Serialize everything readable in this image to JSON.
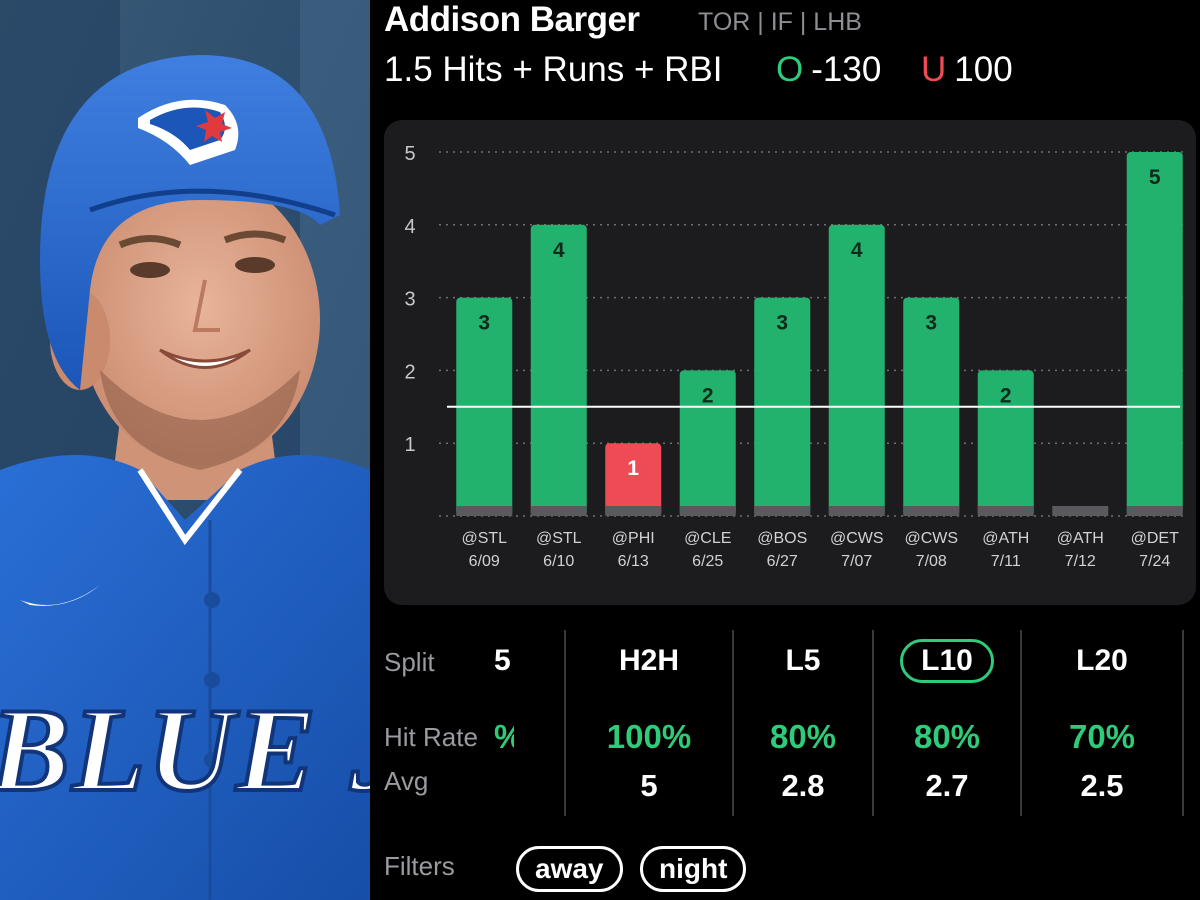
{
  "player": {
    "name": "Addison Barger",
    "meta": "TOR | IF | LHB",
    "jersey_text": "BLUE JA"
  },
  "prop": {
    "line": "1.5 Hits + Runs + RBI",
    "over_letter": "O",
    "over_odds": "-130",
    "under_letter": "U",
    "under_odds": "100"
  },
  "colors": {
    "over": "#2ecc7a",
    "under": "#ef4b55",
    "bar_hit": "#23b26d",
    "bar_miss": "#ef4b55",
    "bar_base": "#5a5a5e",
    "card_bg": "#1c1c1e",
    "jersey": "#1d5fc4"
  },
  "chart_data": {
    "type": "bar",
    "ylim": [
      0,
      5
    ],
    "yticks": [
      1,
      2,
      3,
      4,
      5
    ],
    "threshold": 1.5,
    "categories": [
      {
        "opponent": "@STL",
        "date": "6/09"
      },
      {
        "opponent": "@STL",
        "date": "6/10"
      },
      {
        "opponent": "@PHI",
        "date": "6/13"
      },
      {
        "opponent": "@CLE",
        "date": "6/25"
      },
      {
        "opponent": "@BOS",
        "date": "6/27"
      },
      {
        "opponent": "@CWS",
        "date": "7/07"
      },
      {
        "opponent": "@CWS",
        "date": "7/08"
      },
      {
        "opponent": "@ATH",
        "date": "7/11"
      },
      {
        "opponent": "@ATH",
        "date": "7/12"
      },
      {
        "opponent": "@DET",
        "date": "7/24"
      }
    ],
    "values": [
      3,
      4,
      1,
      2,
      3,
      4,
      3,
      2,
      0,
      5
    ]
  },
  "splits": {
    "row_labels": {
      "split": "Split",
      "hit_rate": "Hit Rate",
      "avg": "Avg"
    },
    "partial_column": {
      "split": "5",
      "hit_rate": "%"
    },
    "columns": [
      {
        "name": "H2H",
        "hit_rate": "100%",
        "avg": "5",
        "active": false
      },
      {
        "name": "L5",
        "hit_rate": "80%",
        "avg": "2.8",
        "active": false
      },
      {
        "name": "L10",
        "hit_rate": "80%",
        "avg": "2.7",
        "active": true
      },
      {
        "name": "L20",
        "hit_rate": "70%",
        "avg": "2.5",
        "active": false
      }
    ]
  },
  "filters": {
    "label": "Filters",
    "chips": [
      "away",
      "night"
    ]
  }
}
